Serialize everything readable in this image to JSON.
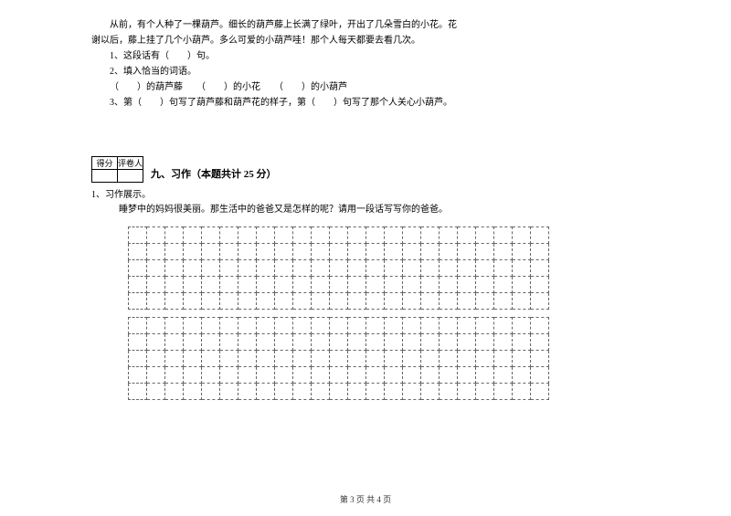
{
  "passage": {
    "line1": "从前，有个人种了一棵葫芦。细长的葫芦藤上长满了绿叶，开出了几朵雪白的小花。花",
    "line2": "谢以后，藤上挂了几个小葫芦。多么可爱的小葫芦哇！那个人每天都要去看几次。",
    "q1": "1、这段话有（　　）句。",
    "q2": "2、填入恰当的词语。",
    "q2_line": "（　　）的葫芦藤　　（　　）的小花　　（　　）的小葫芦",
    "q3": "3、第（　　）句写了葫芦藤和葫芦花的样子，第（　　）句写了那个人关心小葫芦。"
  },
  "score_labels": {
    "col1": "得分",
    "col2": "评卷人"
  },
  "section9": {
    "title": "九、习作（本题共计 25 分）",
    "prompt_num": "1、习作展示。",
    "prompt_text": "睡梦中的妈妈很美丽。那生活中的爸爸又是怎样的呢？请用一段话写写你的爸爸。"
  },
  "grid": {
    "cols": 23,
    "rows1": 5,
    "rows2": 5
  },
  "footer": "第 3 页 共 4 页"
}
